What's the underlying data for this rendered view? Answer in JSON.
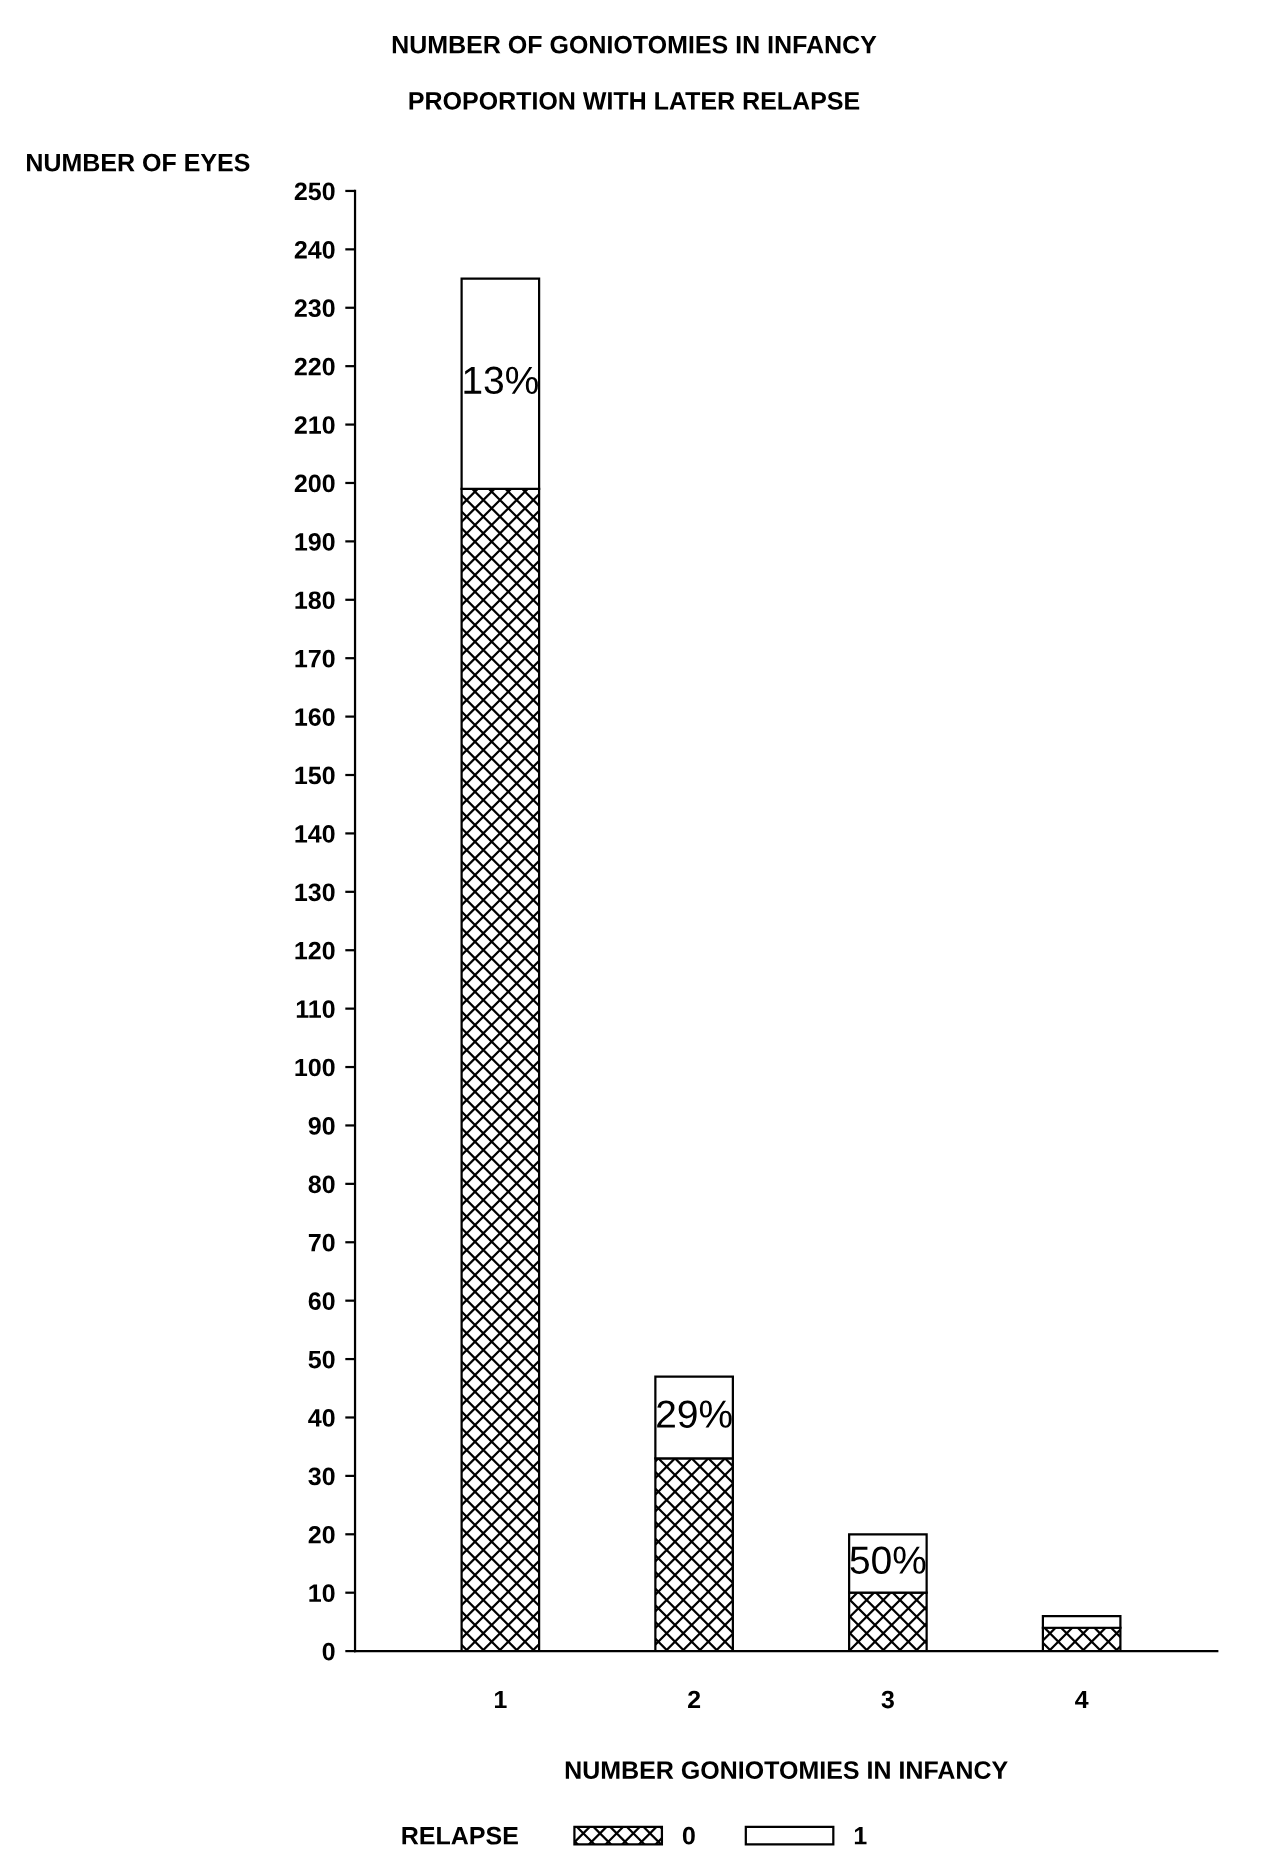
{
  "chart_data": {
    "type": "bar",
    "title": "NUMBER OF GONIOTOMIES IN INFANCY",
    "subtitle": "PROPORTION WITH LATER RELAPSE",
    "xlabel": "NUMBER GONIOTOMIES IN INFANCY",
    "ylabel": "NUMBER OF EYES",
    "legend_title": "RELAPSE",
    "categories": [
      "1",
      "2",
      "3",
      "4"
    ],
    "stacked": true,
    "series": [
      {
        "name": "0",
        "color": "#000000",
        "values": [
          199,
          33,
          10,
          4
        ]
      },
      {
        "name": "1",
        "color": "#ffffff",
        "values": [
          36,
          14,
          10,
          2
        ]
      }
    ],
    "ylim": [
      0,
      250
    ],
    "yticks": [
      0,
      10,
      20,
      30,
      40,
      50,
      60,
      70,
      80,
      90,
      100,
      110,
      120,
      130,
      140,
      150,
      160,
      170,
      180,
      190,
      200,
      210,
      220,
      230,
      240,
      250
    ],
    "annotations": [
      "13%",
      "29%",
      "50%"
    ],
    "legend": "bottom",
    "grid": false
  }
}
